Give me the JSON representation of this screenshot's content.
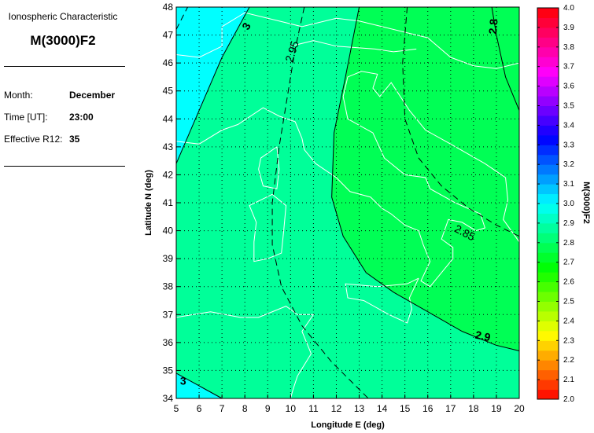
{
  "info": {
    "heading": "Ionospheric Characteristic",
    "parameter": "M(3000)F2",
    "month_label": "Month:",
    "month": "December",
    "time_label": "Time [UT]:",
    "time": "23:00",
    "r12_label": "Effective R12:",
    "r12": "35"
  },
  "chart_data": {
    "type": "heatmap",
    "subtype": "contour map",
    "xlabel": "Longitude E (deg)",
    "ylabel": "Latitude N (deg)",
    "xlim": [
      5,
      20
    ],
    "ylim": [
      34,
      48
    ],
    "xticks": [
      "5",
      "6",
      "7",
      "8",
      "9",
      "10",
      "11",
      "12",
      "13",
      "14",
      "15",
      "16",
      "17",
      "18",
      "19",
      "20"
    ],
    "yticks": [
      "34",
      "35",
      "36",
      "37",
      "38",
      "39",
      "40",
      "41",
      "42",
      "43",
      "44",
      "45",
      "46",
      "47",
      "48"
    ],
    "grid": true,
    "colorbar": {
      "label": "M(3000)F2",
      "range": [
        2.0,
        4.0
      ],
      "ticks": [
        "2.0",
        "2.1",
        "2.2",
        "2.3",
        "2.4",
        "2.5",
        "2.6",
        "2.7",
        "2.8",
        "2.9",
        "3.0",
        "3.1",
        "3.2",
        "3.3",
        "3.4",
        "3.5",
        "3.6",
        "3.7",
        "3.8",
        "3.9",
        "4.0"
      ]
    },
    "contours": [
      {
        "level": "3",
        "style": "solid",
        "points": [
          [
            5,
            42.4
          ],
          [
            6,
            44.3
          ],
          [
            7,
            46.2
          ],
          [
            8.2,
            48
          ]
        ]
      },
      {
        "level": "3",
        "style": "solid",
        "points": [
          [
            5,
            34.9
          ],
          [
            6,
            34.45
          ],
          [
            7,
            34
          ]
        ]
      },
      {
        "level": "3.05",
        "style": "dashed",
        "points": [
          [
            5,
            47.2
          ],
          [
            5.5,
            48
          ]
        ]
      },
      {
        "level": "2.95",
        "style": "dashed",
        "points": [
          [
            10.6,
            48
          ],
          [
            10.2,
            46.5
          ],
          [
            9.9,
            45
          ],
          [
            9.5,
            43
          ],
          [
            9.2,
            41
          ],
          [
            9.2,
            39.5
          ],
          [
            9.6,
            38
          ],
          [
            10.5,
            36.6
          ],
          [
            11.8,
            35.3
          ],
          [
            13.4,
            34
          ]
        ]
      },
      {
        "level": "2.9",
        "style": "solid",
        "points": [
          [
            13,
            48
          ],
          [
            12.4,
            45.5
          ],
          [
            11.9,
            43.5
          ],
          [
            11.8,
            41.2
          ],
          [
            12.3,
            39.8
          ],
          [
            13.3,
            38.5
          ],
          [
            14.5,
            37.8
          ],
          [
            16,
            37.1
          ],
          [
            17.5,
            36.4
          ],
          [
            19,
            35.9
          ],
          [
            20,
            35.7
          ]
        ]
      },
      {
        "level": "2.85",
        "style": "dashed",
        "points": [
          [
            15.1,
            48
          ],
          [
            14.9,
            46
          ],
          [
            15,
            44
          ],
          [
            15.6,
            42.6
          ],
          [
            16.6,
            41.6
          ],
          [
            17.8,
            40.8
          ],
          [
            19,
            40.2
          ],
          [
            20,
            39.8
          ]
        ]
      },
      {
        "level": "2.8",
        "style": "solid",
        "points": [
          [
            18.8,
            48
          ],
          [
            19,
            47
          ],
          [
            19.4,
            45.5
          ],
          [
            20,
            44.3
          ]
        ]
      }
    ],
    "contour_labels": [
      {
        "text": "3",
        "lon": 8.1,
        "lat": 47.3,
        "angle": -60
      },
      {
        "text": "2.95",
        "lon": 10.1,
        "lat": 46.4,
        "angle": -72
      },
      {
        "text": "2.8",
        "lon": 18.9,
        "lat": 47.3,
        "angle": -85
      },
      {
        "text": "2.85",
        "lon": 17.6,
        "lat": 39.9,
        "angle": 28
      },
      {
        "text": "2.9",
        "lon": 18.4,
        "lat": 36.2,
        "angle": 12
      },
      {
        "text": "3",
        "lon": 5.3,
        "lat": 34.6,
        "angle": 0
      }
    ],
    "regions": [
      {
        "range": "3.0",
        "color": "#00ffff"
      },
      {
        "range": "2.9-3.0",
        "color": "#00ff99"
      },
      {
        "range": "2.8-2.9",
        "color": "#00ff55"
      }
    ]
  }
}
